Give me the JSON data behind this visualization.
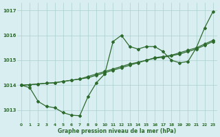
{
  "x": [
    0,
    1,
    2,
    3,
    4,
    5,
    6,
    7,
    8,
    9,
    10,
    11,
    12,
    13,
    14,
    15,
    16,
    17,
    18,
    19,
    20,
    21,
    22,
    23
  ],
  "line_zigzag": [
    1014.0,
    1013.9,
    1013.35,
    1013.15,
    1013.1,
    1012.9,
    1012.8,
    1012.78,
    1013.55,
    1014.1,
    1014.45,
    1015.75,
    1016.0,
    1015.55,
    1015.45,
    1015.55,
    1015.55,
    1015.35,
    1015.0,
    1014.9,
    1014.95,
    1015.5,
    1016.3,
    1016.95
  ],
  "line_straight1": [
    1014.0,
    1014.02,
    1014.05,
    1014.08,
    1014.1,
    1014.15,
    1014.2,
    1014.25,
    1014.3,
    1014.4,
    1014.5,
    1014.6,
    1014.7,
    1014.8,
    1014.9,
    1015.0,
    1015.1,
    1015.15,
    1015.2,
    1015.3,
    1015.4,
    1015.5,
    1015.65,
    1015.8
  ],
  "line_straight2": [
    1014.0,
    1014.02,
    1014.05,
    1014.08,
    1014.1,
    1014.15,
    1014.2,
    1014.25,
    1014.35,
    1014.45,
    1014.55,
    1014.65,
    1014.75,
    1014.85,
    1014.92,
    1015.0,
    1015.08,
    1015.12,
    1015.18,
    1015.25,
    1015.35,
    1015.45,
    1015.6,
    1015.75
  ],
  "background_color": "#d8eef0",
  "line_color": "#2d6a2d",
  "grid_color": "#aacece",
  "xlabel": "Graphe pression niveau de la mer (hPa)",
  "ylim": [
    1012.5,
    1017.3
  ],
  "xlim": [
    -0.5,
    23.5
  ],
  "yticks": [
    1013,
    1014,
    1015,
    1016,
    1017
  ],
  "xticks": [
    0,
    1,
    2,
    3,
    4,
    5,
    6,
    7,
    8,
    9,
    10,
    11,
    12,
    13,
    14,
    15,
    16,
    17,
    18,
    19,
    20,
    21,
    22,
    23
  ]
}
